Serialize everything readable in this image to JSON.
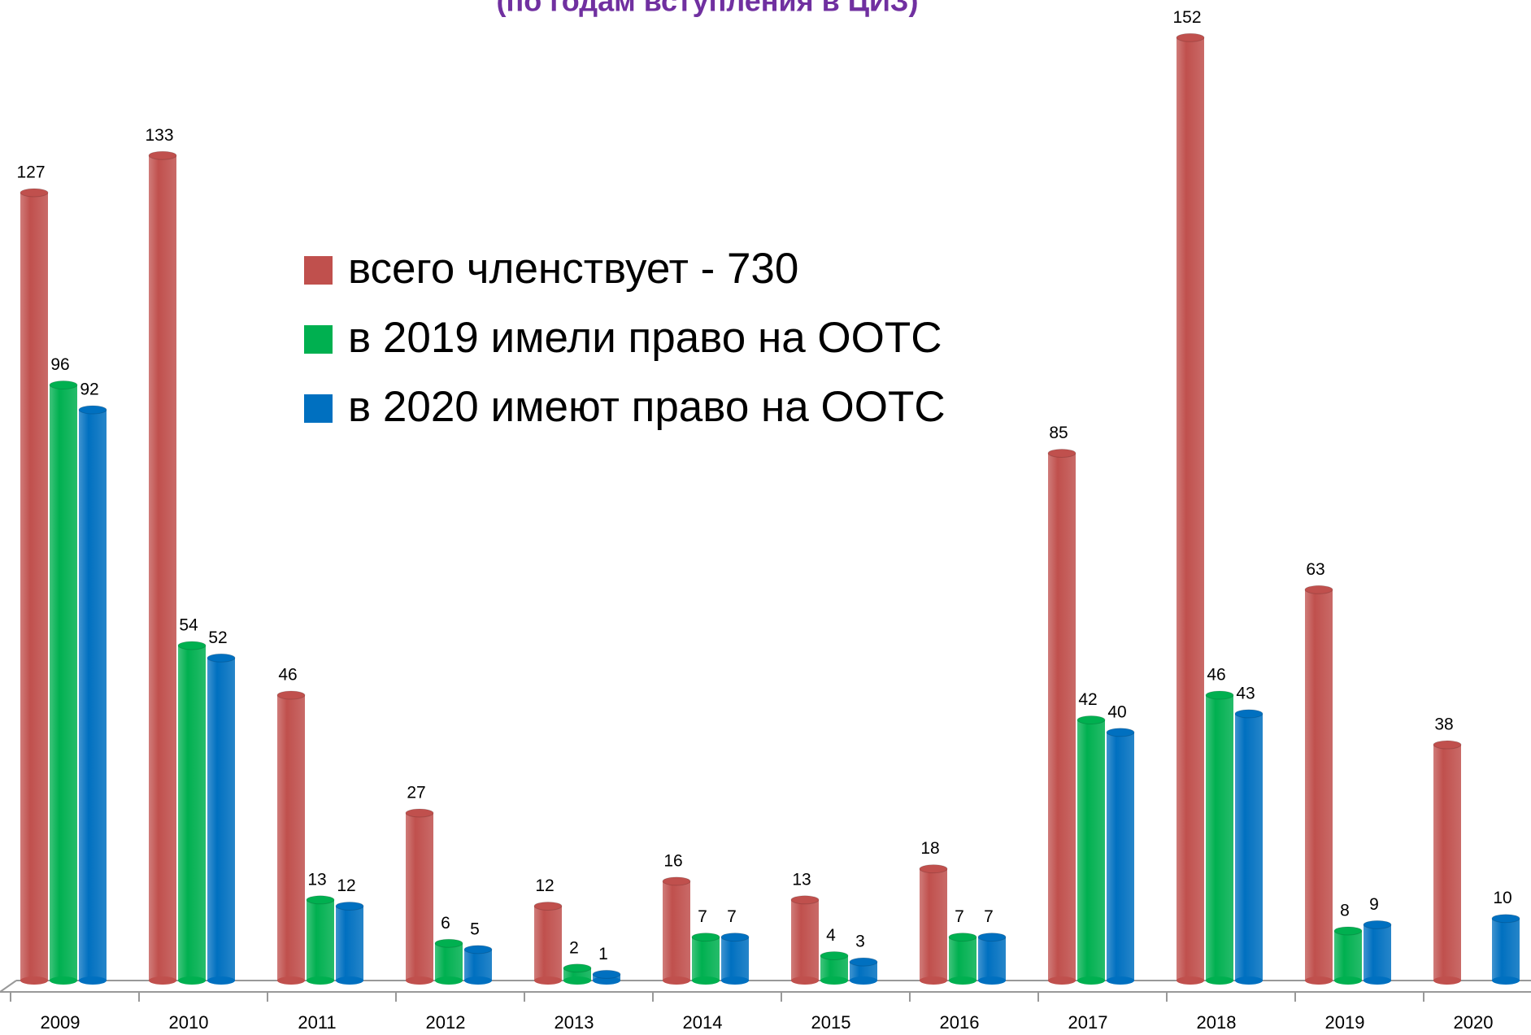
{
  "chart_data": {
    "type": "bar",
    "subtitle": "(по годам вступления в ЦИЗ)",
    "categories": [
      "2009",
      "2010",
      "2011",
      "2012",
      "2013",
      "2014",
      "2015",
      "2016",
      "2017",
      "2018",
      "2019",
      "2020"
    ],
    "series": [
      {
        "name": "всего членствует - 730",
        "color": "#c0504d",
        "values": [
          127,
          133,
          46,
          27,
          12,
          16,
          13,
          18,
          85,
          152,
          63,
          38
        ]
      },
      {
        "name": "в 2019 имели право на ООТС",
        "color": "#00b050",
        "values": [
          96,
          54,
          13,
          6,
          2,
          7,
          4,
          7,
          42,
          46,
          8,
          null
        ]
      },
      {
        "name": "в 2020 имеют право на ООТС",
        "color": "#0070c0",
        "values": [
          92,
          52,
          12,
          5,
          1,
          7,
          3,
          7,
          40,
          43,
          9,
          10
        ]
      }
    ]
  }
}
